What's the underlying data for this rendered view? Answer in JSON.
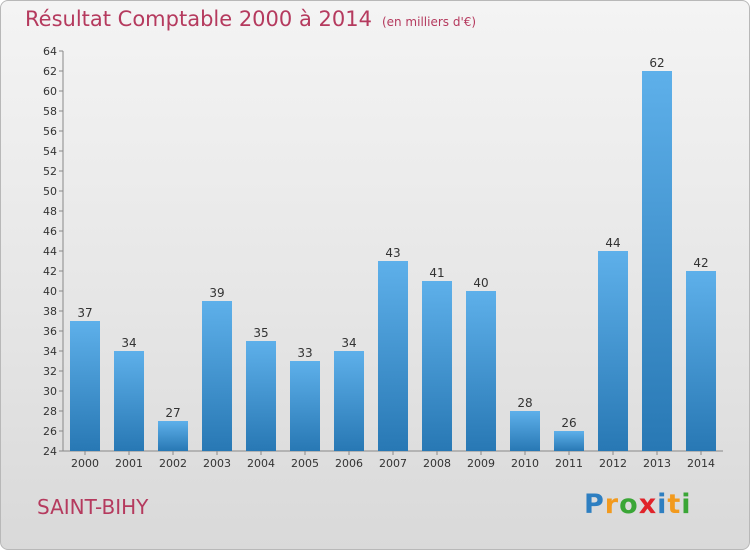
{
  "title": "Résultat Comptable 2000 à 2014",
  "unit": "(en milliers d'€)",
  "commune": "SAINT-BIHY",
  "logo": {
    "letters": [
      "P",
      "r",
      "o",
      "x",
      "i",
      "t",
      "i"
    ],
    "colors": [
      "#2e7fc1",
      "#f29a1d",
      "#3aa636",
      "#e0232a",
      "#2e7fc1",
      "#f29a1d",
      "#3aa636"
    ]
  },
  "colors": {
    "bar_top": "#5eb0ea",
    "bar_bottom": "#2878b4",
    "title": "#b53a5e"
  },
  "chart_data": {
    "type": "bar",
    "categories": [
      "2000",
      "2001",
      "2002",
      "2003",
      "2004",
      "2005",
      "2006",
      "2007",
      "2008",
      "2009",
      "2010",
      "2011",
      "2012",
      "2013",
      "2014"
    ],
    "values": [
      37,
      34,
      27,
      39,
      35,
      33,
      34,
      43,
      41,
      40,
      28,
      26,
      44,
      62,
      42
    ],
    "title": "Résultat Comptable 2000 à 2014",
    "ylim": [
      24,
      64
    ],
    "yticks": [
      24,
      26,
      28,
      30,
      32,
      34,
      36,
      38,
      40,
      42,
      44,
      46,
      48,
      50,
      52,
      54,
      56,
      58,
      60,
      62,
      64
    ],
    "grid": false,
    "data_labels": true
  }
}
